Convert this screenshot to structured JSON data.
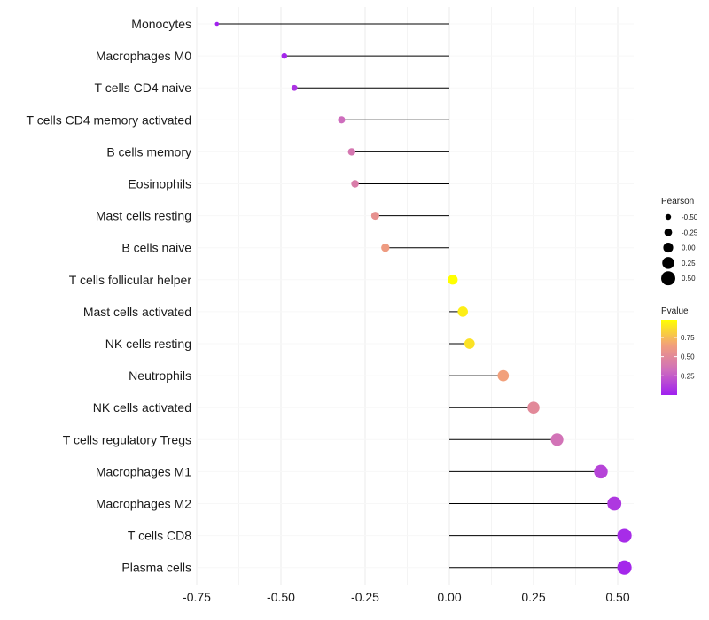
{
  "chart_data": {
    "type": "lollipop",
    "categories": [
      "Monocytes",
      "Macrophages M0",
      "T cells CD4 naive",
      "T cells CD4 memory activated",
      "B cells memory",
      "Eosinophils",
      "Mast cells resting",
      "B cells naive",
      "T cells follicular helper",
      "Mast cells activated",
      "NK cells resting",
      "Neutrophils",
      "NK cells activated",
      "T cells regulatory  Tregs",
      "Macrophages M1",
      "Macrophages M2",
      "T cells CD8",
      "Plasma cells"
    ],
    "pearson": [
      -0.69,
      -0.49,
      -0.46,
      -0.32,
      -0.29,
      -0.28,
      -0.22,
      -0.19,
      0.01,
      0.04,
      0.06,
      0.16,
      0.25,
      0.32,
      0.45,
      0.49,
      0.52,
      0.52
    ],
    "pvalue": [
      0.01,
      0.03,
      0.08,
      0.32,
      0.38,
      0.42,
      0.55,
      0.62,
      0.98,
      0.92,
      0.88,
      0.65,
      0.5,
      0.35,
      0.15,
      0.1,
      0.05,
      0.03
    ],
    "xticks": [
      -0.75,
      -0.5,
      -0.25,
      0.0,
      0.25,
      0.5
    ],
    "xtick_labels": [
      "-0.75",
      "-0.50",
      "-0.25",
      "0.00",
      "0.25",
      "0.50"
    ],
    "xlim": [
      -0.75,
      0.56
    ],
    "xlabel": "",
    "ylabel": "",
    "legend_size": {
      "title": "Pearson",
      "values": [
        -0.5,
        -0.25,
        0.0,
        0.25,
        0.5
      ],
      "labels": [
        "-0.50",
        "-0.25",
        "0.00",
        "0.25",
        "0.50"
      ]
    },
    "legend_color": {
      "title": "Pvalue",
      "ticks": [
        0.25,
        0.5,
        0.75
      ],
      "labels": [
        "0.25",
        "0.50",
        "0.75"
      ],
      "range": [
        0.0,
        0.98
      ],
      "colors": [
        "#a020f0",
        "#cf6fbc",
        "#f2a07a",
        "#ffff00"
      ]
    },
    "grid": true,
    "legend_position": "right"
  }
}
